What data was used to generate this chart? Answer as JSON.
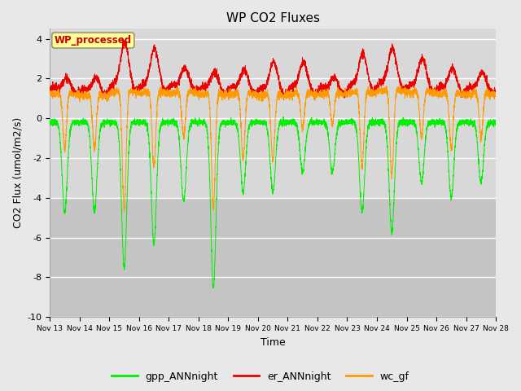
{
  "title": "WP CO2 Fluxes",
  "xlabel": "Time",
  "ylabel": "CO2 Flux (umol/m2/s)",
  "ylim": [
    -10,
    4.5
  ],
  "yticks": [
    -10,
    -8,
    -6,
    -4,
    -2,
    0,
    2,
    4
  ],
  "background_color": "#e8e8e8",
  "plot_bg_upper_color": "#d8d8d8",
  "plot_bg_lower_color": "#c8c8c8",
  "grid_color": "#ffffff",
  "colors": {
    "gpp": "#00ee00",
    "er": "#ee0000",
    "wc": "#ff9900"
  },
  "legend_labels": [
    "gpp_ANNnight",
    "er_ANNnight",
    "wc_gf"
  ],
  "annotation_text": "WP_processed",
  "annotation_bg": "#ffff99",
  "annotation_fg": "#cc0000",
  "n_points": 4320,
  "n_days": 15
}
